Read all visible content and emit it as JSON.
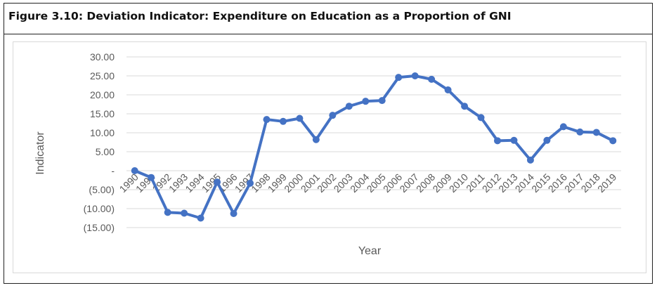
{
  "figure": {
    "title": "Figure 3.10: Deviation Indicator: Expenditure on Education as a Proportion of GNI"
  },
  "chart_data": {
    "type": "line",
    "title": "",
    "xlabel": "Year",
    "ylabel": "Indicator",
    "ylim": [
      -15,
      30
    ],
    "yticks": [
      30,
      25,
      20,
      15,
      10,
      5,
      0,
      -5,
      -10,
      -15
    ],
    "ytick_labels": [
      "30.00",
      "25.00",
      "20.00",
      "15.00",
      "10.00",
      "5.00",
      "-",
      "(5.00)",
      "(10.00)",
      "(15.00)"
    ],
    "grid": true,
    "legend": "none",
    "line_color": "#4472c4",
    "categories": [
      "1990",
      "1991",
      "1992",
      "1993",
      "1994",
      "1995",
      "1996",
      "1997",
      "1998",
      "1999",
      "2000",
      "2001",
      "2002",
      "2003",
      "2004",
      "2005",
      "2006",
      "2007",
      "2008",
      "2009",
      "2010",
      "2011",
      "2012",
      "2013",
      "2014",
      "2015",
      "2016",
      "2017",
      "2018",
      "2019"
    ],
    "series": [
      {
        "values": [
          0,
          -1.8,
          -11,
          -11.2,
          -12.5,
          -3,
          -11.3,
          -3.3,
          13.5,
          13,
          13.8,
          8.2,
          14.6,
          17,
          18.3,
          18.5,
          24.6,
          25,
          24.1,
          21.3,
          17,
          14,
          7.9,
          8,
          2.8,
          8,
          11.6,
          10.2,
          10.1,
          7.9
        ]
      }
    ]
  }
}
